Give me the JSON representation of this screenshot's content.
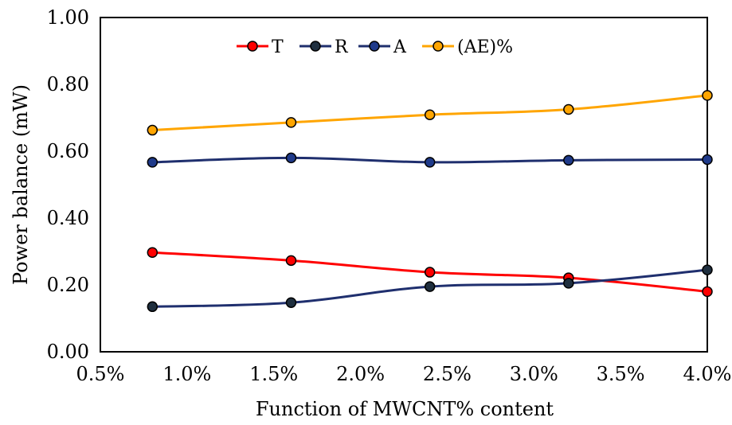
{
  "chart_data": {
    "type": "line",
    "xlabel": "Function of MWCNT% content",
    "ylabel": "Power balance (mW)",
    "xlim": [
      0.005,
      0.04
    ],
    "ylim": [
      0,
      1
    ],
    "x_ticks": [
      0.005,
      0.01,
      0.015,
      0.02,
      0.025,
      0.03,
      0.035,
      0.04
    ],
    "x_tick_labels": [
      "0.5%",
      "1.0%",
      "1.5%",
      "2.0%",
      "2.5%",
      "3.0%",
      "3.5%",
      "4.0%"
    ],
    "y_ticks": [
      0,
      0.2,
      0.4,
      0.6,
      0.8,
      1.0
    ],
    "y_tick_labels": [
      "0.00",
      "0.20",
      "0.40",
      "0.60",
      "0.80",
      "1.00"
    ],
    "x": [
      0.008,
      0.016,
      0.024,
      0.032,
      0.04
    ],
    "legend_position": "top",
    "grid": false,
    "series": [
      {
        "name": "T",
        "values": [
          0.297,
          0.273,
          0.238,
          0.221,
          0.18
        ],
        "color": "#ff0000",
        "marker_fill": "#ff0000"
      },
      {
        "name": "R",
        "values": [
          0.135,
          0.147,
          0.195,
          0.205,
          0.245
        ],
        "color": "#1f2f6e",
        "marker_fill": "#1f2f3f"
      },
      {
        "name": "A",
        "values": [
          0.567,
          0.58,
          0.567,
          0.573,
          0.575
        ],
        "color": "#1f2f6e",
        "marker_fill": "#1f3a8a"
      },
      {
        "name": "(AE)%",
        "values": [
          0.663,
          0.686,
          0.709,
          0.725,
          0.767
        ],
        "color": "#ffa500",
        "marker_fill": "#ffa500"
      }
    ]
  }
}
